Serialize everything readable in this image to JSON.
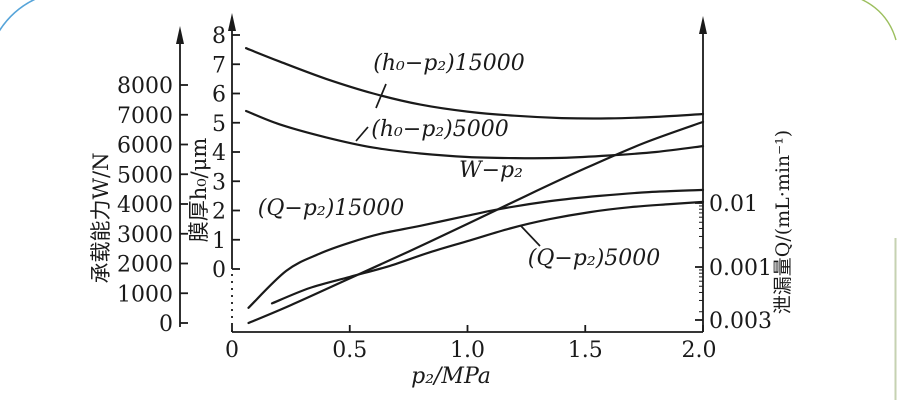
{
  "figure": {
    "ink_color": "#1a1a1a",
    "decor": {
      "top_left_arc_color": "#56a4d9",
      "top_right_arc_color": "#9cbf5e",
      "right_edge_line_color": "#c6d2b2"
    }
  },
  "chart_data": {
    "type": "line",
    "title": "",
    "xlabel": "p₂/MPa",
    "x_axis": {
      "range": [
        0,
        2.0
      ],
      "tick_values": [
        0,
        0.5,
        1.0,
        1.5,
        2.0
      ],
      "tick_labels": [
        "0",
        "0.5",
        "1.0",
        "1.5",
        "2.0"
      ]
    },
    "left_axis_load": {
      "title": "承载能力W/N",
      "range": [
        0,
        8000
      ],
      "tick_values": [
        0,
        1000,
        2000,
        3000,
        4000,
        5000,
        6000,
        7000,
        8000
      ],
      "tick_labels": [
        "0",
        "1000",
        "2000",
        "3000",
        "4000",
        "5000",
        "6000",
        "7000",
        "8000"
      ]
    },
    "left_axis_film": {
      "title": "膜厚h₀/μm",
      "range": [
        0,
        8
      ],
      "tick_values": [
        0,
        1,
        2,
        3,
        4,
        5,
        6,
        7,
        8
      ],
      "tick_labels": [
        "0",
        "1",
        "2",
        "3",
        "4",
        "5",
        "6",
        "7",
        "8"
      ]
    },
    "right_axis_leak": {
      "title": "泄漏量Q/(mL·min⁻¹)",
      "scale": "log",
      "tick_labels": [
        "0.01",
        "0.001",
        "0.003"
      ]
    },
    "grid": false,
    "legend": "inline curve labels",
    "series": [
      {
        "name": "(h₀−p₂)15000",
        "axis": "film",
        "x": [
          0.06,
          0.2,
          0.4,
          0.6,
          0.8,
          1.0,
          1.2,
          1.4,
          1.6,
          1.8,
          2.0
        ],
        "y": [
          7.55,
          7.1,
          6.5,
          6.0,
          5.62,
          5.38,
          5.24,
          5.16,
          5.15,
          5.2,
          5.3
        ]
      },
      {
        "name": "(h₀−p₂)5000",
        "axis": "film",
        "x": [
          0.06,
          0.2,
          0.4,
          0.6,
          0.8,
          1.0,
          1.2,
          1.4,
          1.6,
          1.8,
          2.0
        ],
        "y": [
          5.4,
          4.95,
          4.5,
          4.15,
          3.95,
          3.83,
          3.79,
          3.8,
          3.88,
          4.0,
          4.2
        ]
      },
      {
        "name": "W−p₂",
        "axis": "load",
        "x": [
          0.07,
          0.25,
          0.5,
          0.75,
          1.0,
          1.25,
          1.5,
          1.75,
          2.0
        ],
        "y": [
          0,
          600,
          1500,
          2400,
          3330,
          4280,
          5200,
          6050,
          6760
        ]
      },
      {
        "name": "(Q−p₂)15000",
        "axis": "leak",
        "x": [
          0.07,
          0.23,
          0.37,
          0.5,
          0.63,
          0.8,
          0.97,
          1.14,
          1.35,
          1.56,
          1.77,
          2.0
        ],
        "y": [
          0.00023,
          0.00087,
          0.0016,
          0.0024,
          0.0033,
          0.0044,
          0.006,
          0.0081,
          0.0107,
          0.0129,
          0.0148,
          0.016
        ]
      },
      {
        "name": "(Q−p₂)5000",
        "axis": "leak",
        "x": [
          0.17,
          0.33,
          0.5,
          0.67,
          0.84,
          1.01,
          1.18,
          1.35,
          1.52,
          1.69,
          1.86,
          2.0
        ],
        "y": [
          0.00027,
          0.00047,
          0.0007,
          0.00104,
          0.0017,
          0.0026,
          0.004,
          0.0056,
          0.0072,
          0.0086,
          0.0096,
          0.0104
        ]
      }
    ]
  }
}
